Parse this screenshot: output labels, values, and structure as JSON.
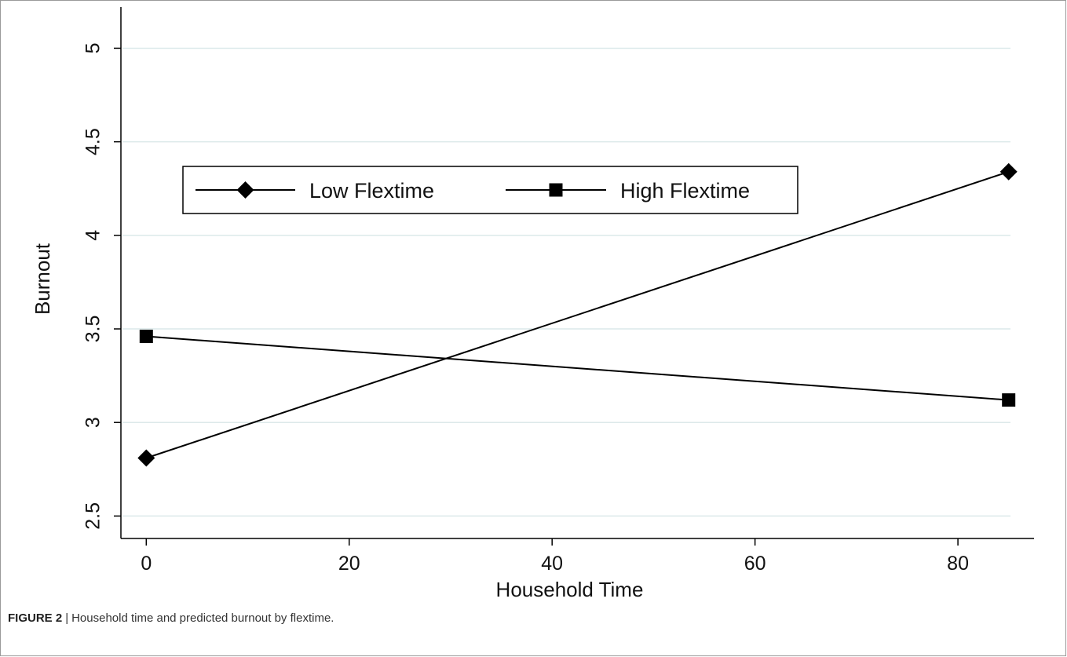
{
  "chart_data": {
    "type": "line",
    "xlabel": "Household Time",
    "ylabel": "Burnout",
    "xlim": [
      -2.5,
      87.5
    ],
    "ylim": [
      2.38,
      5.22
    ],
    "xticks": [
      0,
      20,
      40,
      60,
      80
    ],
    "yticks": [
      2.5,
      3,
      3.5,
      4,
      4.5,
      5
    ],
    "ytick_labels": [
      "2.5",
      "3",
      "3.5",
      "4",
      "4.5",
      "5"
    ],
    "grid": true,
    "legend_position": "upper-left",
    "series": [
      {
        "name": "Low Flextime",
        "marker": "diamond",
        "x": [
          0,
          85
        ],
        "y": [
          2.81,
          4.34
        ]
      },
      {
        "name": "High Flextime",
        "marker": "square",
        "x": [
          0,
          85
        ],
        "y": [
          3.46,
          3.12
        ]
      }
    ]
  },
  "caption": {
    "label": "FIGURE 2",
    "separator": "|",
    "text": "Household time and predicted burnout by flextime."
  },
  "colors": {
    "line": "#000000",
    "grid": "#dce9ea",
    "axis": "#000000"
  }
}
